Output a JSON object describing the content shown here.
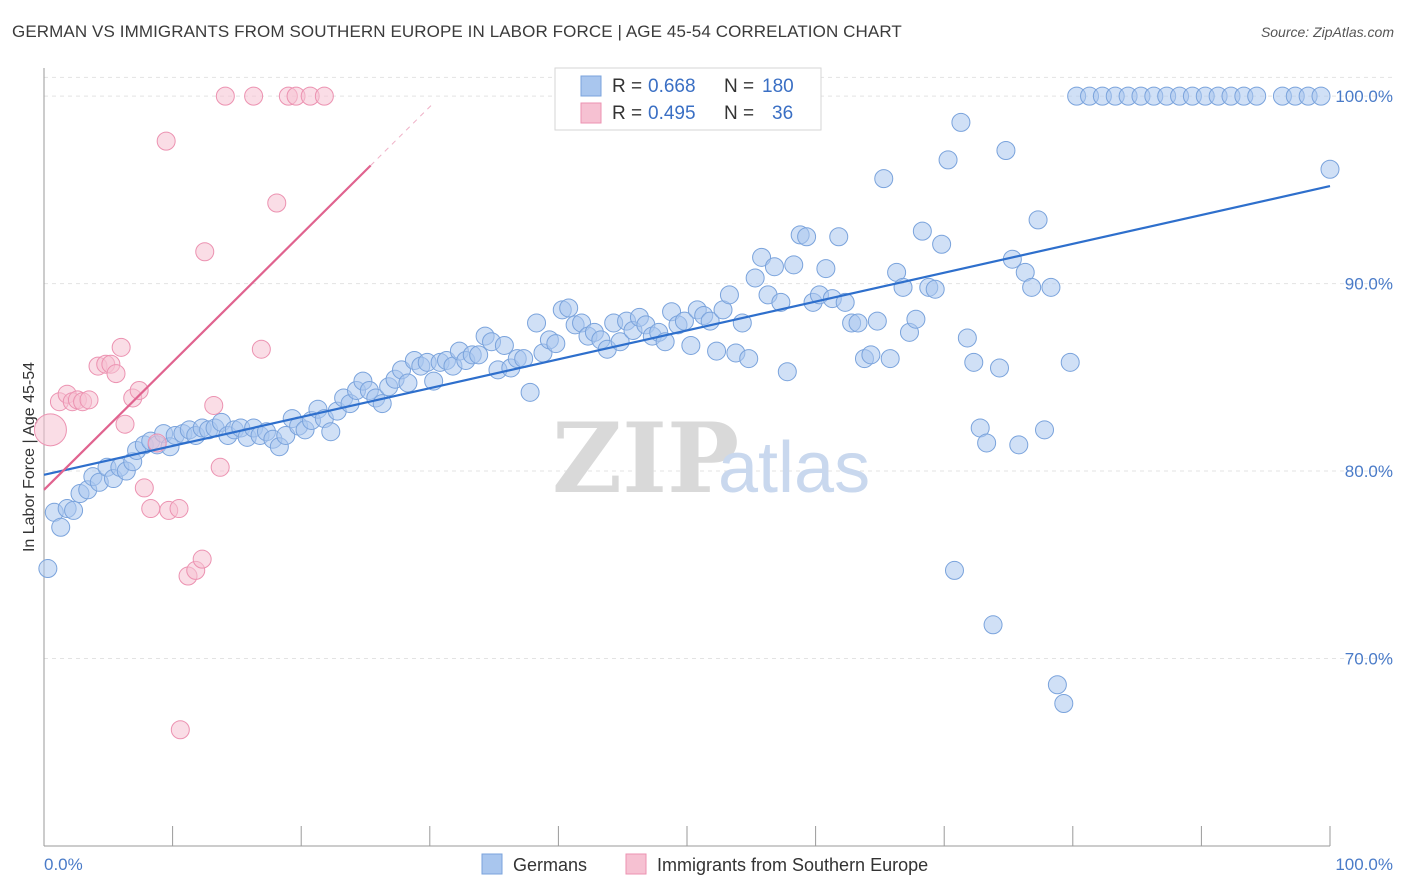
{
  "title": "GERMAN VS IMMIGRANTS FROM SOUTHERN EUROPE IN LABOR FORCE | AGE 45-54 CORRELATION CHART",
  "source": "Source: ZipAtlas.com",
  "watermark": {
    "zip": "ZIP",
    "atlas": "atlas"
  },
  "colors": {
    "blue_fill": "#a9c6ee",
    "blue_stroke": "#7aa3dc",
    "blue_line": "#2e6fcc",
    "pink_fill": "#f6c1d2",
    "pink_stroke": "#ec92b1",
    "pink_line": "#e0638f",
    "grid": "#e3e3e3",
    "tick_text": "#4a7bc8"
  },
  "legend": {
    "rows": [
      {
        "r_label": "R =",
        "r_value": "0.668",
        "n_label": "N =",
        "n_value": "180"
      },
      {
        "r_label": "R =",
        "r_value": "0.495",
        "n_label": "N =",
        "n_value": "36"
      }
    ]
  },
  "chart_data": {
    "type": "scatter",
    "title": "GERMAN VS IMMIGRANTS FROM SOUTHERN EUROPE IN LABOR FORCE | AGE 45-54 CORRELATION CHART",
    "xlabel": "",
    "ylabel": "In Labor Force | Age 45-54",
    "xlim": [
      0,
      100
    ],
    "ylim": [
      60,
      101.5
    ],
    "x_tick_labels": [
      "0.0%",
      "100.0%"
    ],
    "y_ticks": [
      70,
      80,
      90,
      100
    ],
    "y_tick_labels": [
      "70.0%",
      "80.0%",
      "90.0%",
      "100.0%"
    ],
    "series": [
      {
        "name": "Germans",
        "color": "#a9c6ee",
        "trend": {
          "x0": 0,
          "y0": 79.8,
          "x1": 100,
          "y1": 95.2
        },
        "points": [
          [
            0.3,
            74.8
          ],
          [
            0.8,
            77.8
          ],
          [
            1.3,
            77.0
          ],
          [
            1.8,
            78.0
          ],
          [
            2.3,
            77.9
          ],
          [
            2.8,
            78.8
          ],
          [
            3.4,
            79.0
          ],
          [
            3.8,
            79.7
          ],
          [
            4.3,
            79.4
          ],
          [
            4.9,
            80.2
          ],
          [
            5.4,
            79.6
          ],
          [
            5.9,
            80.2
          ],
          [
            6.4,
            80.0
          ],
          [
            6.9,
            80.5
          ],
          [
            7.2,
            81.1
          ],
          [
            7.8,
            81.4
          ],
          [
            8.3,
            81.6
          ],
          [
            8.8,
            81.4
          ],
          [
            9.3,
            82.0
          ],
          [
            9.8,
            81.3
          ],
          [
            10.2,
            81.9
          ],
          [
            10.8,
            82.0
          ],
          [
            11.3,
            82.2
          ],
          [
            11.8,
            81.9
          ],
          [
            12.3,
            82.3
          ],
          [
            12.8,
            82.2
          ],
          [
            13.3,
            82.3
          ],
          [
            13.8,
            82.6
          ],
          [
            14.3,
            81.9
          ],
          [
            14.8,
            82.2
          ],
          [
            15.3,
            82.3
          ],
          [
            15.8,
            81.8
          ],
          [
            16.3,
            82.3
          ],
          [
            16.8,
            81.9
          ],
          [
            17.3,
            82.1
          ],
          [
            17.8,
            81.7
          ],
          [
            18.3,
            81.3
          ],
          [
            18.8,
            81.9
          ],
          [
            19.3,
            82.8
          ],
          [
            19.8,
            82.4
          ],
          [
            20.3,
            82.2
          ],
          [
            20.8,
            82.7
          ],
          [
            21.3,
            83.3
          ],
          [
            21.8,
            82.8
          ],
          [
            22.3,
            82.1
          ],
          [
            22.8,
            83.2
          ],
          [
            23.3,
            83.9
          ],
          [
            23.8,
            83.6
          ],
          [
            24.3,
            84.3
          ],
          [
            24.8,
            84.8
          ],
          [
            25.3,
            84.3
          ],
          [
            25.8,
            83.9
          ],
          [
            26.3,
            83.6
          ],
          [
            26.8,
            84.5
          ],
          [
            27.3,
            84.9
          ],
          [
            27.8,
            85.4
          ],
          [
            28.3,
            84.7
          ],
          [
            28.8,
            85.9
          ],
          [
            29.3,
            85.6
          ],
          [
            29.8,
            85.8
          ],
          [
            30.3,
            84.8
          ],
          [
            30.8,
            85.8
          ],
          [
            31.3,
            85.9
          ],
          [
            31.8,
            85.6
          ],
          [
            32.3,
            86.4
          ],
          [
            32.8,
            85.9
          ],
          [
            33.3,
            86.2
          ],
          [
            33.8,
            86.2
          ],
          [
            34.3,
            87.2
          ],
          [
            34.8,
            86.9
          ],
          [
            35.3,
            85.4
          ],
          [
            35.8,
            86.7
          ],
          [
            36.3,
            85.5
          ],
          [
            36.8,
            86.0
          ],
          [
            37.3,
            86.0
          ],
          [
            37.8,
            84.2
          ],
          [
            38.3,
            87.9
          ],
          [
            38.8,
            86.3
          ],
          [
            39.3,
            87.0
          ],
          [
            39.8,
            86.8
          ],
          [
            40.3,
            88.6
          ],
          [
            40.8,
            88.7
          ],
          [
            41.3,
            87.8
          ],
          [
            41.8,
            87.9
          ],
          [
            42.3,
            87.2
          ],
          [
            42.8,
            87.4
          ],
          [
            43.3,
            87.0
          ],
          [
            43.8,
            86.5
          ],
          [
            44.3,
            87.9
          ],
          [
            44.8,
            86.9
          ],
          [
            45.3,
            88.0
          ],
          [
            45.8,
            87.5
          ],
          [
            46.3,
            88.2
          ],
          [
            46.8,
            87.8
          ],
          [
            47.3,
            87.2
          ],
          [
            47.8,
            87.4
          ],
          [
            48.3,
            86.9
          ],
          [
            48.8,
            88.5
          ],
          [
            49.3,
            87.8
          ],
          [
            49.8,
            88.0
          ],
          [
            50.3,
            86.7
          ],
          [
            50.8,
            88.6
          ],
          [
            51.3,
            88.3
          ],
          [
            51.8,
            88.0
          ],
          [
            52.3,
            86.4
          ],
          [
            52.8,
            88.6
          ],
          [
            53.3,
            89.4
          ],
          [
            53.8,
            86.3
          ],
          [
            54.3,
            87.9
          ],
          [
            54.8,
            86.0
          ],
          [
            55.3,
            90.3
          ],
          [
            55.8,
            91.4
          ],
          [
            56.3,
            89.4
          ],
          [
            56.8,
            90.9
          ],
          [
            57.3,
            89.0
          ],
          [
            57.8,
            85.3
          ],
          [
            58.3,
            91.0
          ],
          [
            58.8,
            92.6
          ],
          [
            59.3,
            92.5
          ],
          [
            59.8,
            89.0
          ],
          [
            60.3,
            89.4
          ],
          [
            60.8,
            90.8
          ],
          [
            61.3,
            89.2
          ],
          [
            61.8,
            92.5
          ],
          [
            62.3,
            89.0
          ],
          [
            62.8,
            87.9
          ],
          [
            63.3,
            87.9
          ],
          [
            63.8,
            86.0
          ],
          [
            64.3,
            86.2
          ],
          [
            64.8,
            88.0
          ],
          [
            65.3,
            95.6
          ],
          [
            65.8,
            86.0
          ],
          [
            66.3,
            90.6
          ],
          [
            66.8,
            89.8
          ],
          [
            67.3,
            87.4
          ],
          [
            67.8,
            88.1
          ],
          [
            68.3,
            92.8
          ],
          [
            68.8,
            89.8
          ],
          [
            69.3,
            89.7
          ],
          [
            69.8,
            92.1
          ],
          [
            70.3,
            96.6
          ],
          [
            70.8,
            74.7
          ],
          [
            71.3,
            98.6
          ],
          [
            71.8,
            87.1
          ],
          [
            72.3,
            85.8
          ],
          [
            72.8,
            82.3
          ],
          [
            73.3,
            81.5
          ],
          [
            73.8,
            71.8
          ],
          [
            74.3,
            85.5
          ],
          [
            74.8,
            97.1
          ],
          [
            75.3,
            91.3
          ],
          [
            75.8,
            81.4
          ],
          [
            76.3,
            90.6
          ],
          [
            76.8,
            89.8
          ],
          [
            77.3,
            93.4
          ],
          [
            77.8,
            82.2
          ],
          [
            78.3,
            89.8
          ],
          [
            78.8,
            68.6
          ],
          [
            79.3,
            67.6
          ],
          [
            79.8,
            85.8
          ],
          [
            80.3,
            100.0
          ],
          [
            81.3,
            100.0
          ],
          [
            82.3,
            100.0
          ],
          [
            83.3,
            100.0
          ],
          [
            84.3,
            100.0
          ],
          [
            85.3,
            100.0
          ],
          [
            86.3,
            100.0
          ],
          [
            87.3,
            100.0
          ],
          [
            88.3,
            100.0
          ],
          [
            89.3,
            100.0
          ],
          [
            90.3,
            100.0
          ],
          [
            91.3,
            100.0
          ],
          [
            92.3,
            100.0
          ],
          [
            93.3,
            100.0
          ],
          [
            94.3,
            100.0
          ],
          [
            96.3,
            100.0
          ],
          [
            97.3,
            100.0
          ],
          [
            98.3,
            100.0
          ],
          [
            99.3,
            100.0
          ],
          [
            100.0,
            96.1
          ]
        ]
      },
      {
        "name": "Immigrants from Southern Europe",
        "color": "#f6c1d2",
        "trend": {
          "x0": 0,
          "y0": 79.0,
          "x1": 25.4,
          "y1": 96.3
        },
        "points": [
          [
            0.5,
            82.2
          ],
          [
            1.2,
            83.7
          ],
          [
            1.8,
            84.1
          ],
          [
            2.2,
            83.7
          ],
          [
            2.6,
            83.8
          ],
          [
            3.0,
            83.7
          ],
          [
            3.5,
            83.8
          ],
          [
            4.2,
            85.6
          ],
          [
            4.8,
            85.7
          ],
          [
            5.2,
            85.7
          ],
          [
            5.6,
            85.2
          ],
          [
            6.0,
            86.6
          ],
          [
            6.3,
            82.5
          ],
          [
            6.9,
            83.9
          ],
          [
            7.4,
            84.3
          ],
          [
            7.8,
            79.1
          ],
          [
            8.3,
            78.0
          ],
          [
            8.8,
            81.5
          ],
          [
            9.5,
            97.6
          ],
          [
            9.7,
            77.9
          ],
          [
            10.5,
            78.0
          ],
          [
            11.2,
            74.4
          ],
          [
            11.8,
            74.7
          ],
          [
            12.3,
            75.3
          ],
          [
            12.5,
            91.7
          ],
          [
            13.2,
            83.5
          ],
          [
            13.7,
            80.2
          ],
          [
            14.1,
            100.0
          ],
          [
            16.3,
            100.0
          ],
          [
            16.9,
            86.5
          ],
          [
            18.1,
            94.3
          ],
          [
            19.0,
            100.0
          ],
          [
            19.6,
            100.0
          ],
          [
            20.7,
            100.0
          ],
          [
            21.8,
            100.0
          ],
          [
            10.6,
            66.2
          ]
        ]
      }
    ]
  },
  "bottom_legend": [
    {
      "label": "Germans"
    },
    {
      "label": "Immigrants from Southern Europe"
    }
  ]
}
